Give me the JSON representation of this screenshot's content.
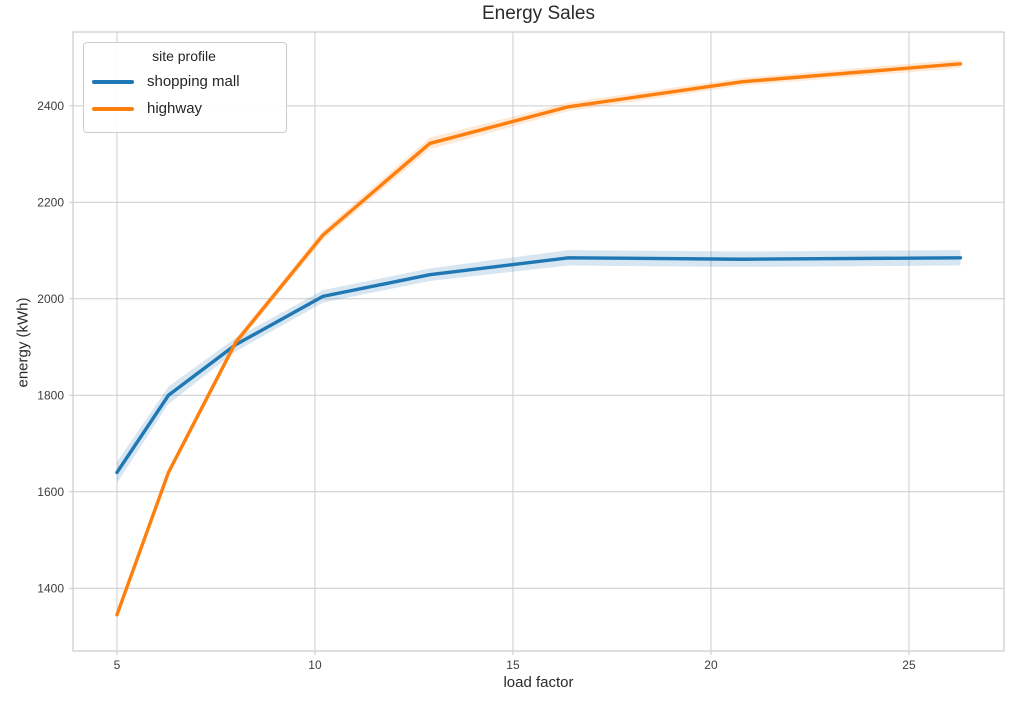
{
  "chart_data": {
    "type": "line",
    "title": "Energy Sales",
    "xlabel": "load factor",
    "ylabel": "energy (kWh)",
    "legend_title": "site profile",
    "legend_position": "upper left",
    "grid": true,
    "background": "#ffffff",
    "grid_color": "#cccccc",
    "spine_color": "#cccccc",
    "tick_text_color": "#3d3d3d",
    "x_ticks": [
      5,
      10,
      15,
      20,
      25
    ],
    "y_ticks": [
      1400,
      1600,
      1800,
      2000,
      2200,
      2400
    ],
    "xlim": [
      3.89,
      27.4
    ],
    "ylim": [
      1270,
      2553
    ],
    "x": [
      5.0,
      6.3,
      8.0,
      10.2,
      12.9,
      16.4,
      20.8,
      26.3
    ],
    "series": [
      {
        "name": "shopping mall",
        "color": "#1f77b4",
        "band_alpha": 0.18,
        "values": [
          1640,
          1800,
          1905,
          2005,
          2050,
          2085,
          2082,
          2085
        ],
        "band_low": [
          1618,
          1782,
          1891,
          1992,
          2037,
          2069,
          2066,
          2069
        ],
        "band_high": [
          1662,
          1818,
          1919,
          2018,
          2063,
          2101,
          2098,
          2101
        ]
      },
      {
        "name": "highway",
        "color": "#ff7f0e",
        "band_alpha": 0.18,
        "values": [
          1345,
          1640,
          1910,
          2132,
          2322,
          2398,
          2450,
          2487
        ],
        "band_low": [
          1337,
          1632,
          1902,
          2123,
          2310,
          2389,
          2442,
          2478
        ],
        "band_high": [
          1353,
          1648,
          1918,
          2141,
          2334,
          2407,
          2458,
          2496
        ]
      }
    ]
  }
}
